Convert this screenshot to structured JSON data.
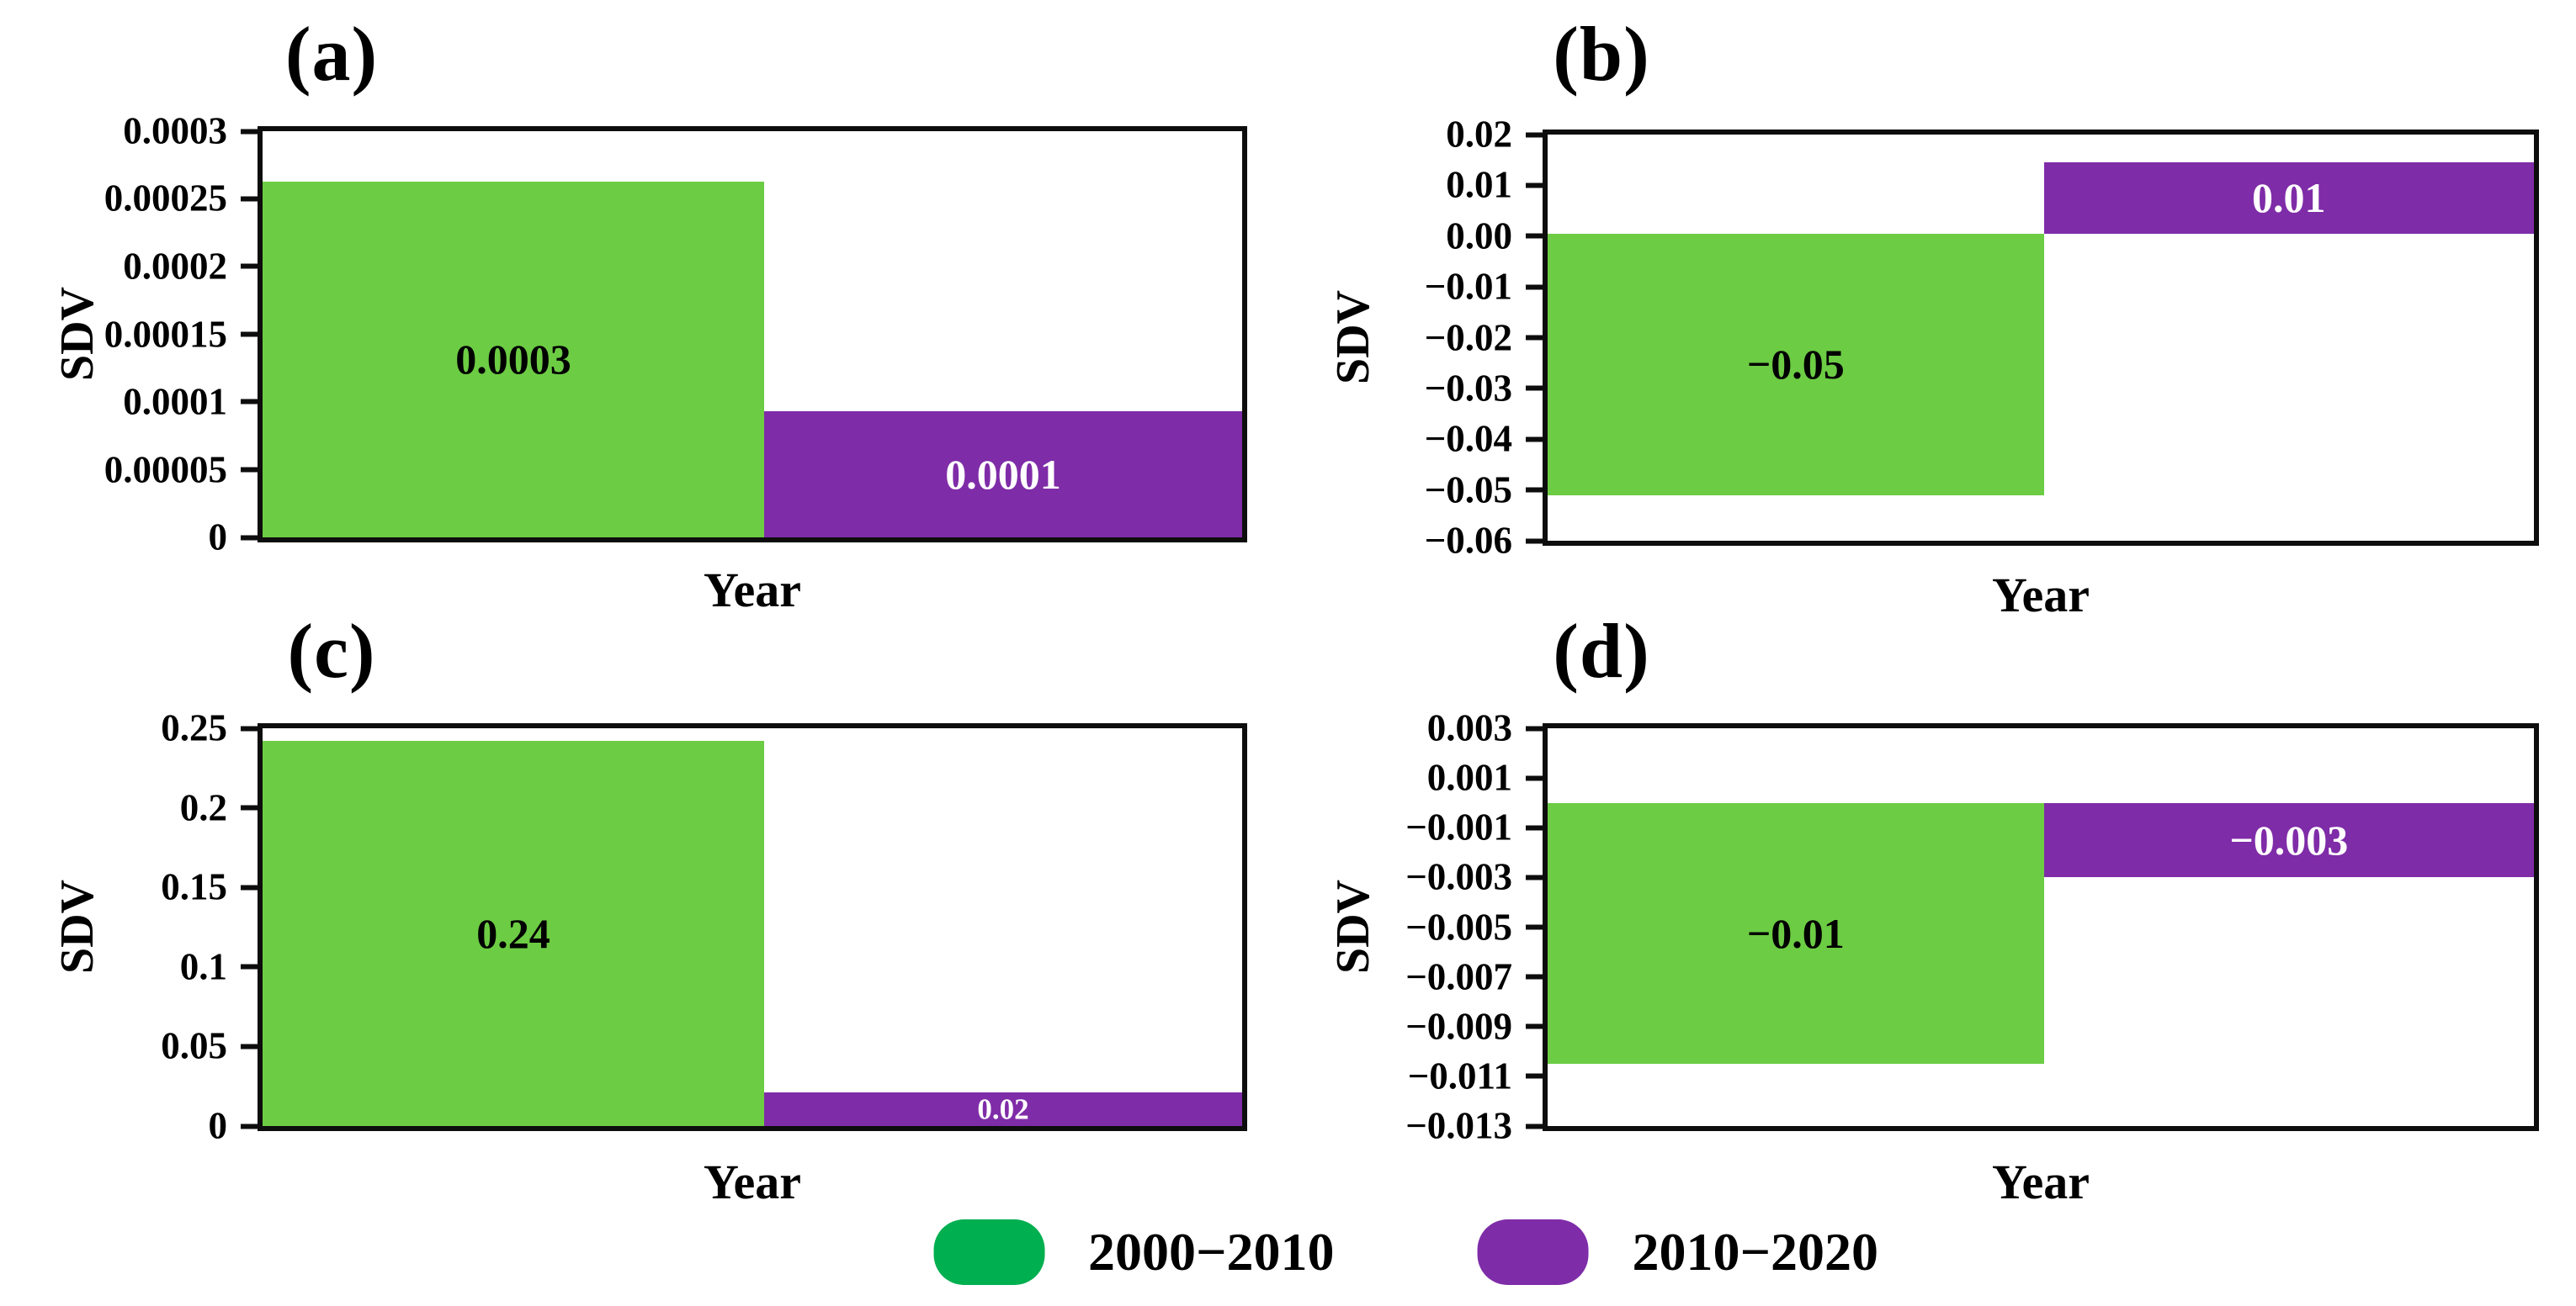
{
  "figure": {
    "ylabel": "SDV",
    "xlabel": "Year"
  },
  "chart_data": [
    {
      "type": "bar",
      "title": "(a)",
      "xlabel": "Year",
      "ylabel": "SDV",
      "ylim": [
        0,
        0.0003
      ],
      "grid": false,
      "yticks": [
        "0.0003",
        "0.00025",
        "0.0002",
        "0.00015",
        "0.0001",
        "0.00005",
        "0"
      ],
      "ytick_values": [
        0.0003,
        0.00025,
        0.0002,
        0.00015,
        0.0001,
        5e-05,
        0
      ],
      "categories": [
        "2000−2010",
        "2010−2020"
      ],
      "series": [
        {
          "name": "2000−2010",
          "label": "0.0003",
          "value": 0.0003,
          "bar_from": 0,
          "bar_to": 0.000263,
          "color": "#6CCC43",
          "label_color": "#000000"
        },
        {
          "name": "2010−2020",
          "label": "0.0001",
          "value": 0.0001,
          "bar_from": 0,
          "bar_to": 9.3e-05,
          "color": "#7F2CA8",
          "label_color": "#FFFFFF"
        }
      ]
    },
    {
      "type": "bar",
      "title": "(b)",
      "xlabel": "Year",
      "ylabel": "SDV",
      "ylim": [
        -0.06,
        0.02
      ],
      "grid": false,
      "yticks": [
        "0.02",
        "0.01",
        "0.00",
        "−0.01",
        "−0.02",
        "−0.03",
        "−0.04",
        "−0.05",
        "−0.06"
      ],
      "ytick_values": [
        0.02,
        0.01,
        0,
        -0.01,
        -0.02,
        -0.03,
        -0.04,
        -0.05,
        -0.06
      ],
      "categories": [
        "2000−2010",
        "2010−2020"
      ],
      "series": [
        {
          "name": "2000−2010",
          "label": "−0.05",
          "value": -0.05,
          "bar_from": 0.0005,
          "bar_to": -0.051,
          "color": "#6CCC43",
          "label_color": "#000000"
        },
        {
          "name": "2010−2020",
          "label": "0.01",
          "value": 0.01,
          "bar_from": 0.0005,
          "bar_to": 0.0145,
          "color": "#7F2CA8",
          "label_color": "#FFFFFF"
        }
      ]
    },
    {
      "type": "bar",
      "title": "(c)",
      "xlabel": "Year",
      "ylabel": "SDV",
      "ylim": [
        0,
        0.25
      ],
      "grid": false,
      "yticks": [
        "0.25",
        "0.2",
        "0.15",
        "0.1",
        "0.05",
        "0"
      ],
      "ytick_values": [
        0.25,
        0.2,
        0.15,
        0.1,
        0.05,
        0
      ],
      "categories": [
        "2000−2010",
        "2010−2020"
      ],
      "series": [
        {
          "name": "2000−2010",
          "label": "0.24",
          "value": 0.24,
          "bar_from": 0,
          "bar_to": 0.242,
          "color": "#6CCC43",
          "label_color": "#000000"
        },
        {
          "name": "2010−2020",
          "label": "0.02",
          "value": 0.02,
          "bar_from": 0,
          "bar_to": 0.021,
          "color": "#7F2CA8",
          "label_color": "#FFFFFF",
          "small_label": true
        }
      ]
    },
    {
      "type": "bar",
      "title": "(d)",
      "xlabel": "Year",
      "ylabel": "SDV",
      "ylim": [
        -0.013,
        0.003
      ],
      "grid": false,
      "yticks": [
        "0.003",
        "0.001",
        "−0.001",
        "−0.003",
        "−0.005",
        "−0.007",
        "−0.009",
        "−0.011",
        "−0.013"
      ],
      "ytick_values": [
        0.003,
        0.001,
        -0.001,
        -0.003,
        -0.005,
        -0.007,
        -0.009,
        -0.011,
        -0.013
      ],
      "categories": [
        "2000−2010",
        "2010−2020"
      ],
      "series": [
        {
          "name": "2000−2010",
          "label": "−0.01",
          "value": -0.01,
          "bar_from": 0,
          "bar_to": -0.0105,
          "color": "#6CCC43",
          "label_color": "#000000"
        },
        {
          "name": "2010−2020",
          "label": "−0.003",
          "value": -0.003,
          "bar_from": 0,
          "bar_to": -0.003,
          "color": "#7F2CA8",
          "label_color": "#FFFFFF"
        }
      ]
    }
  ],
  "legend": {
    "position": "bottom-center",
    "items": [
      {
        "label": "2000−2010",
        "color": "#00AF50"
      },
      {
        "label": "2010−2020",
        "color": "#7F2CA8"
      }
    ]
  }
}
